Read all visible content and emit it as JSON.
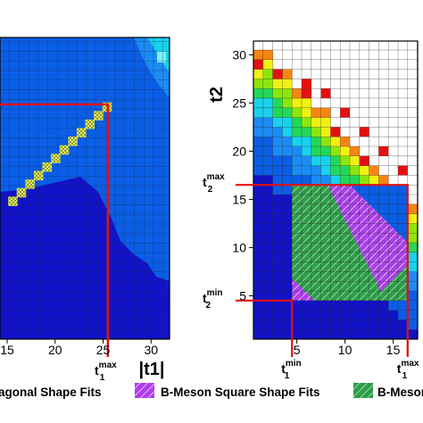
{
  "chart_data": [
    {
      "type": "heatmap",
      "panel": "left",
      "xlabel": "|t1|",
      "ylabel": "",
      "x_ticks": [
        15,
        20,
        25,
        30
      ],
      "xlim": [
        12.5,
        32
      ],
      "ylim": [
        0,
        32
      ],
      "markers": [
        {
          "label": "t",
          "sup": "max",
          "sub": "1",
          "x": 25.5,
          "y": 25.5
        }
      ],
      "highlight_series": [
        {
          "name": "",
          "x_from": 0,
          "x_to": 25.5,
          "note": "diagonal cells along t2 = t1"
        }
      ]
    },
    {
      "type": "heatmap",
      "panel": "right",
      "xlabel": "",
      "ylabel": "t2",
      "x_ticks": [
        5,
        10,
        15
      ],
      "y_ticks": [
        5,
        10,
        15,
        20,
        25,
        30
      ],
      "xlim": [
        0.5,
        18.5
      ],
      "ylim": [
        0.5,
        32
      ],
      "markers": [
        {
          "label": "t",
          "sup": "max",
          "sub": "2",
          "axis": "y",
          "value": 16.5
        },
        {
          "label": "t",
          "sup": "min",
          "sub": "2",
          "axis": "y",
          "value": 4.5
        },
        {
          "label": "t",
          "sup": "min",
          "sub": "1",
          "axis": "x",
          "value": 4.5
        },
        {
          "label": "t",
          "sup": "max",
          "sub": "1",
          "axis": "x",
          "value": 16.5
        }
      ],
      "square_region": {
        "t1": [
          4.5,
          16.5
        ],
        "t2": [
          4.5,
          16.5
        ]
      }
    }
  ],
  "legend": [
    {
      "label": "agonal Shape Fits",
      "color": "#e8ef5a"
    },
    {
      "label": "B-Meson Square Shape Fits",
      "color": "#b03cf0"
    },
    {
      "label": "B-Meson",
      "color": "#2f9c4a"
    }
  ],
  "colors": {
    "deep_blue": "#1212c8",
    "blue": "#0a5ee6",
    "light_blue": "#1a8cf5",
    "cyan": "#18d2ee",
    "green": "#22d85a",
    "lime": "#8ce60e",
    "yellow": "#f0f013",
    "orange": "#f58512",
    "red": "#e41010",
    "marker_line": "#e01010"
  }
}
